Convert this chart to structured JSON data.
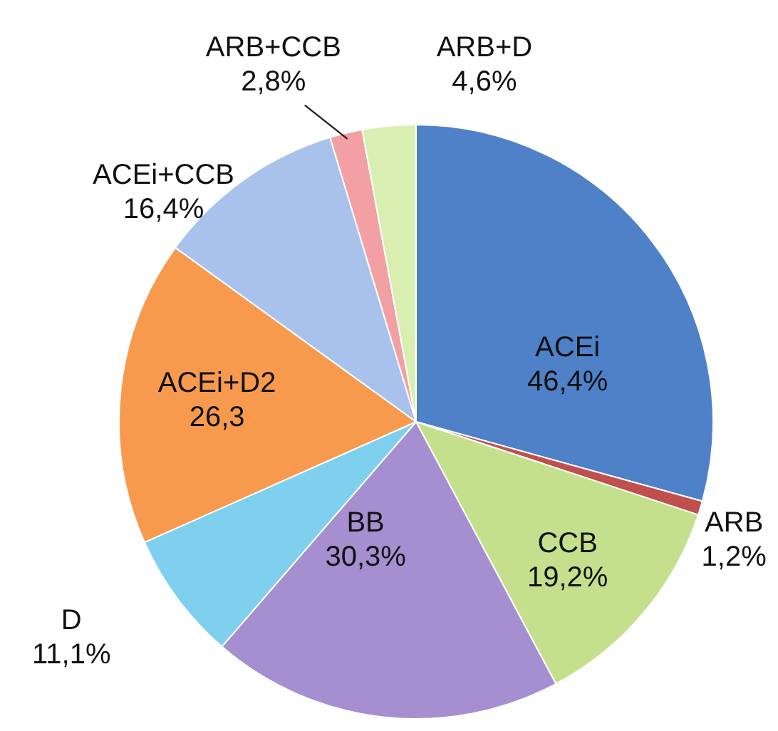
{
  "chart_data": {
    "type": "pie",
    "categories": [
      "ACEi",
      "ARB",
      "CCB",
      "BB",
      "D",
      "ACEi+D2",
      "ACEi+CCB",
      "ARB+CCB",
      "ARB+D"
    ],
    "values": [
      46.4,
      1.2,
      19.2,
      30.3,
      11.1,
      26.3,
      16.4,
      2.8,
      4.6
    ],
    "value_labels": [
      "46,4%",
      "1,2%",
      "19,2%",
      "30,3%",
      "11,1%",
      "26,3",
      "16,4%",
      "2,8%",
      "4,6%"
    ],
    "colors": [
      "#4f81c9",
      "#c0504d",
      "#c4e08c",
      "#a58fd0",
      "#7fd0ee",
      "#f79a4e",
      "#a9c2ec",
      "#f2a0a4",
      "#d9efb2"
    ],
    "legend": false
  }
}
